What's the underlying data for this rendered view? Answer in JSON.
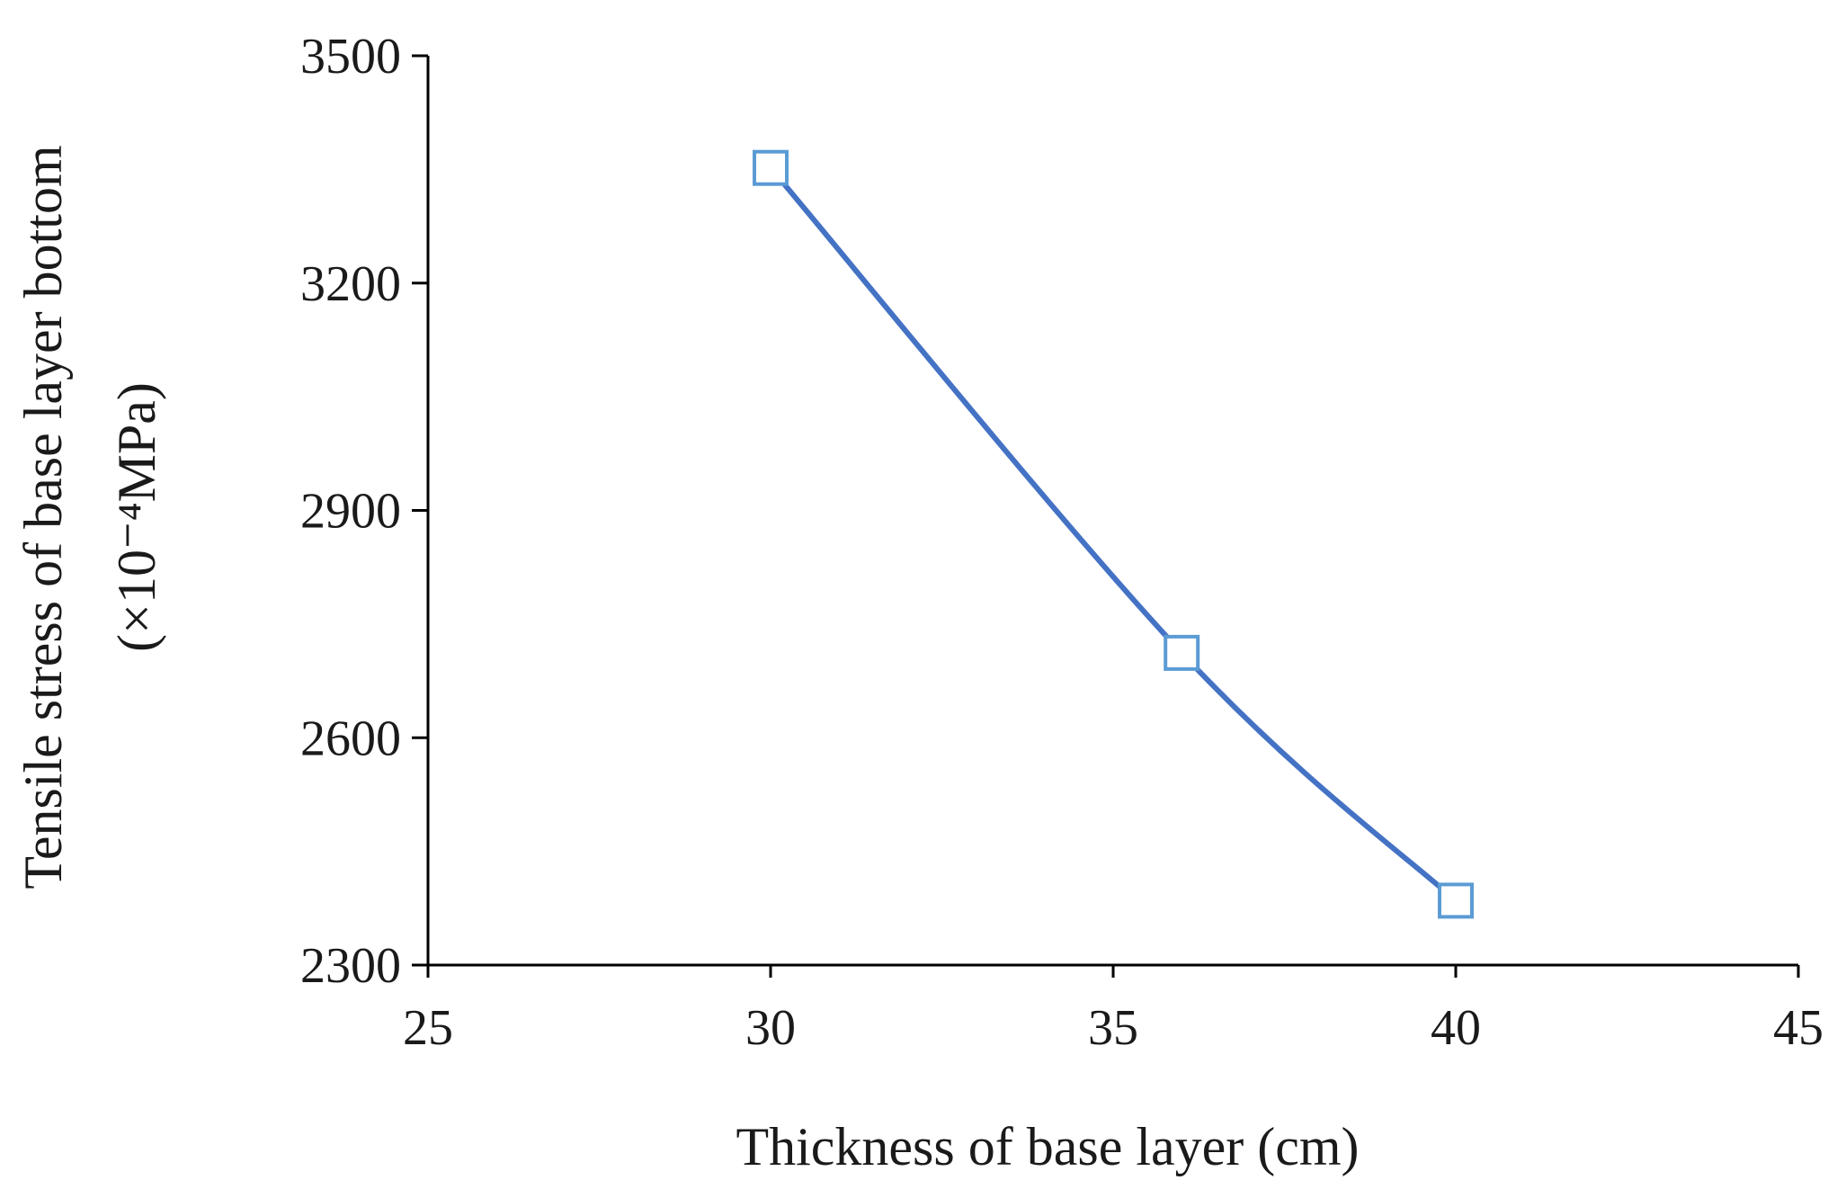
{
  "chart_data": {
    "type": "line",
    "title": "",
    "xlabel": "Thickness of base layer (cm)",
    "ylabel_line1": "Tensile stress of base layer bottom",
    "ylabel_line2": "(×10⁻⁴MPa)",
    "xlim": [
      25,
      45
    ],
    "ylim": [
      2300,
      3500
    ],
    "x_ticks": [
      25,
      30,
      35,
      40,
      45
    ],
    "y_ticks": [
      2300,
      2600,
      2900,
      3200,
      3500
    ],
    "grid": false,
    "legend": "none",
    "series": [
      {
        "x": [
          30,
          36,
          40
        ],
        "values": [
          3352,
          2712,
          2385
        ],
        "line_color": "#4472C4",
        "marker_color": "#5B9BD5",
        "marker": "hollow-square"
      }
    ]
  }
}
